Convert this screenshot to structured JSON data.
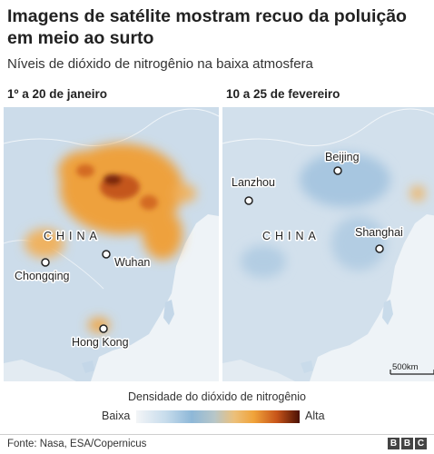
{
  "header": {
    "title": "Imagens de satélite mostram recuo da poluição em meio ao surto",
    "subtitle": "Níveis de dióxido de nitrogênio na baixa atmosfera"
  },
  "panels": [
    {
      "label": "1º a 20 de janeiro",
      "country": "CHINA",
      "cities": [
        "Chongqing",
        "Wuhan",
        "Hong Kong"
      ]
    },
    {
      "label": "10 a 25 de fevereiro",
      "country": "CHINA",
      "cities": [
        "Lanzhou",
        "Beijing",
        "Shanghai"
      ],
      "scale": "500km"
    }
  ],
  "legend": {
    "title": "Densidade do dióxido de nitrogênio",
    "low": "Baixa",
    "high": "Alta",
    "colors": [
      "#f3f5f7",
      "#8eb8d8",
      "#f0a33a",
      "#c8551a",
      "#4a1004"
    ]
  },
  "footer": {
    "source": "Fonte: Nasa, ESA/Copernicus",
    "logo": "BBC"
  }
}
